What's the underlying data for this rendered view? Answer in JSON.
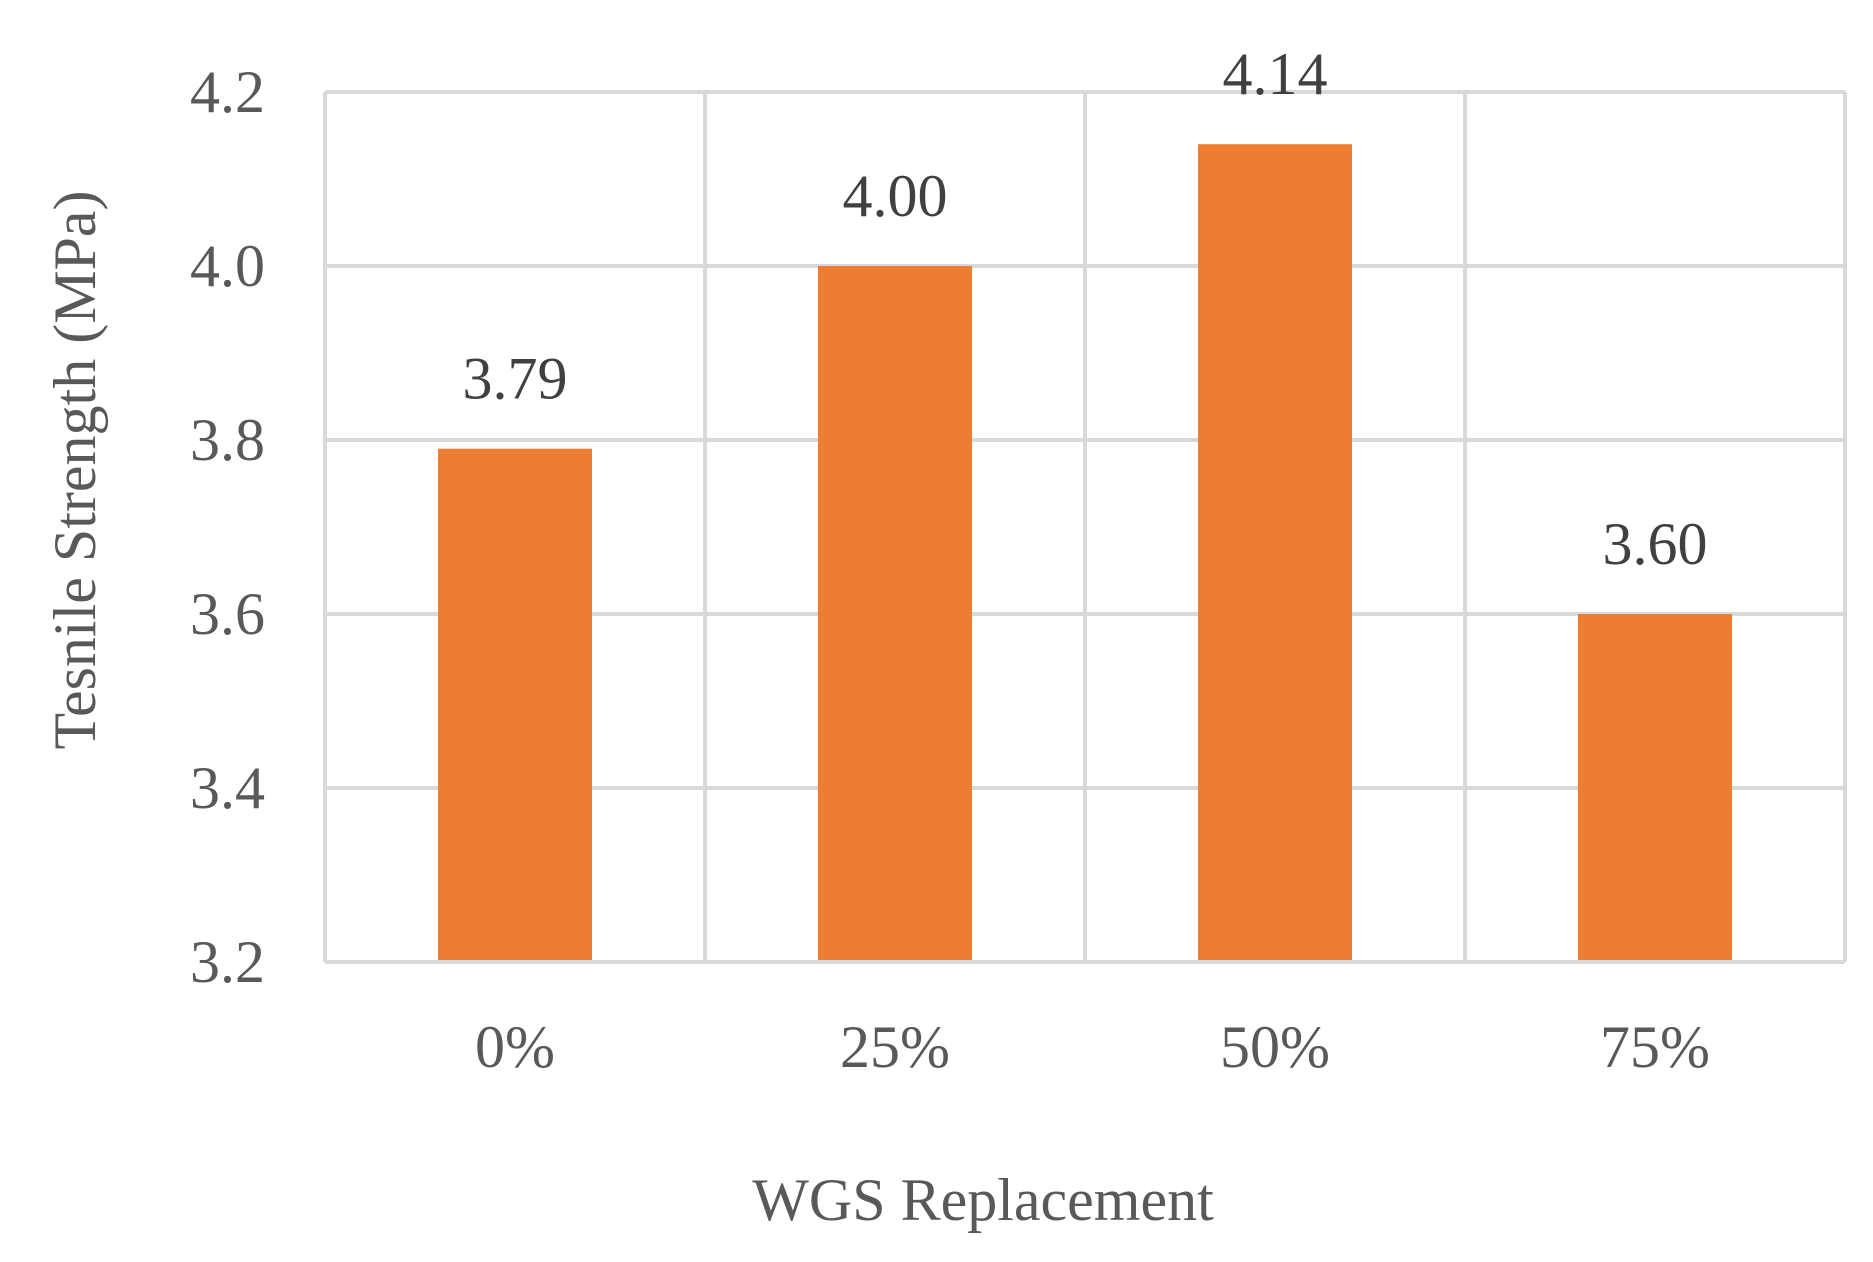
{
  "chart_data": {
    "type": "bar",
    "categories": [
      "0%",
      "25%",
      "50%",
      "75%"
    ],
    "values": [
      3.79,
      4.0,
      4.14,
      3.6
    ],
    "value_labels": [
      "3.79",
      "4.00",
      "4.14",
      "3.60"
    ],
    "xlabel": "WGS Replacement",
    "ylabel": "Tesnile Strength (MPa)",
    "ylim": [
      3.2,
      4.2
    ],
    "yticks": [
      3.2,
      3.4,
      3.6,
      3.8,
      4.0,
      4.2
    ],
    "ytick_labels": [
      "3.2",
      "3.4",
      "3.6",
      "3.8",
      "4.0",
      "4.2"
    ],
    "grid": true,
    "legend": "none",
    "bar_color": "#ed7d31"
  }
}
